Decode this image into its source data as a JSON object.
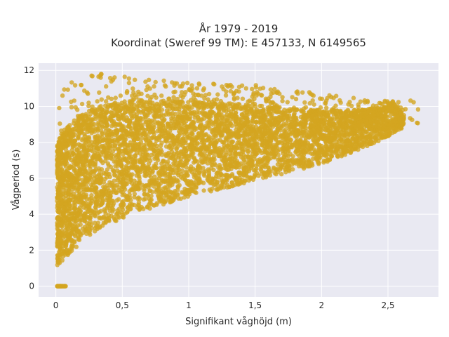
{
  "chart_data": {
    "type": "scatter",
    "title": [
      "År 1979 - 2019",
      "Koordinat (Sweref 99 TM): E 457133, N 6149565"
    ],
    "xlabel": "Signifikant våghöjd (m)",
    "ylabel": "Vågperiod (s)",
    "xlim": [
      -0.13,
      2.88
    ],
    "ylim": [
      -0.6,
      12.4
    ],
    "xticks": [
      0,
      0.5,
      1,
      1.5,
      2,
      2.5
    ],
    "xtick_labels": [
      "0",
      "0,5",
      "1",
      "1,5",
      "2",
      "2,5"
    ],
    "yticks": [
      0,
      2,
      4,
      6,
      8,
      10,
      12
    ],
    "ytick_labels": [
      "0",
      "2",
      "4",
      "6",
      "8",
      "10",
      "12"
    ],
    "grid": true,
    "legend": "none",
    "marker_color": "#d4a520",
    "background_color": "#e9e9f2",
    "envelope": {
      "lower_bound": [
        [
          0.01,
          1.1
        ],
        [
          0.1,
          1.8
        ],
        [
          0.2,
          2.5
        ],
        [
          0.3,
          3.0
        ],
        [
          0.5,
          3.8
        ],
        [
          0.75,
          4.4
        ],
        [
          1.0,
          5.0
        ],
        [
          1.25,
          5.4
        ],
        [
          1.5,
          5.9
        ],
        [
          1.75,
          6.3
        ],
        [
          2.0,
          6.8
        ],
        [
          2.25,
          7.5
        ],
        [
          2.5,
          8.3
        ],
        [
          2.62,
          8.8
        ]
      ],
      "upper_bound": [
        [
          0.01,
          8.0
        ],
        [
          0.05,
          8.6
        ],
        [
          0.15,
          9.3
        ],
        [
          0.3,
          10.0
        ],
        [
          0.6,
          10.4
        ],
        [
          1.0,
          10.3
        ],
        [
          1.5,
          10.1
        ],
        [
          2.0,
          9.8
        ],
        [
          2.3,
          9.8
        ],
        [
          2.55,
          10.1
        ],
        [
          2.68,
          9.0
        ]
      ],
      "outlier_region": [
        [
          0.15,
          12.0
        ],
        [
          0.7,
          11.5
        ],
        [
          1.0,
          11.3
        ],
        [
          1.5,
          11.2
        ],
        [
          2.0,
          10.7
        ],
        [
          2.5,
          10.3
        ],
        [
          2.73,
          10.5
        ]
      ],
      "zero_cluster": [
        [
          0.01,
          0.0
        ],
        [
          0.08,
          0.0
        ]
      ]
    }
  }
}
